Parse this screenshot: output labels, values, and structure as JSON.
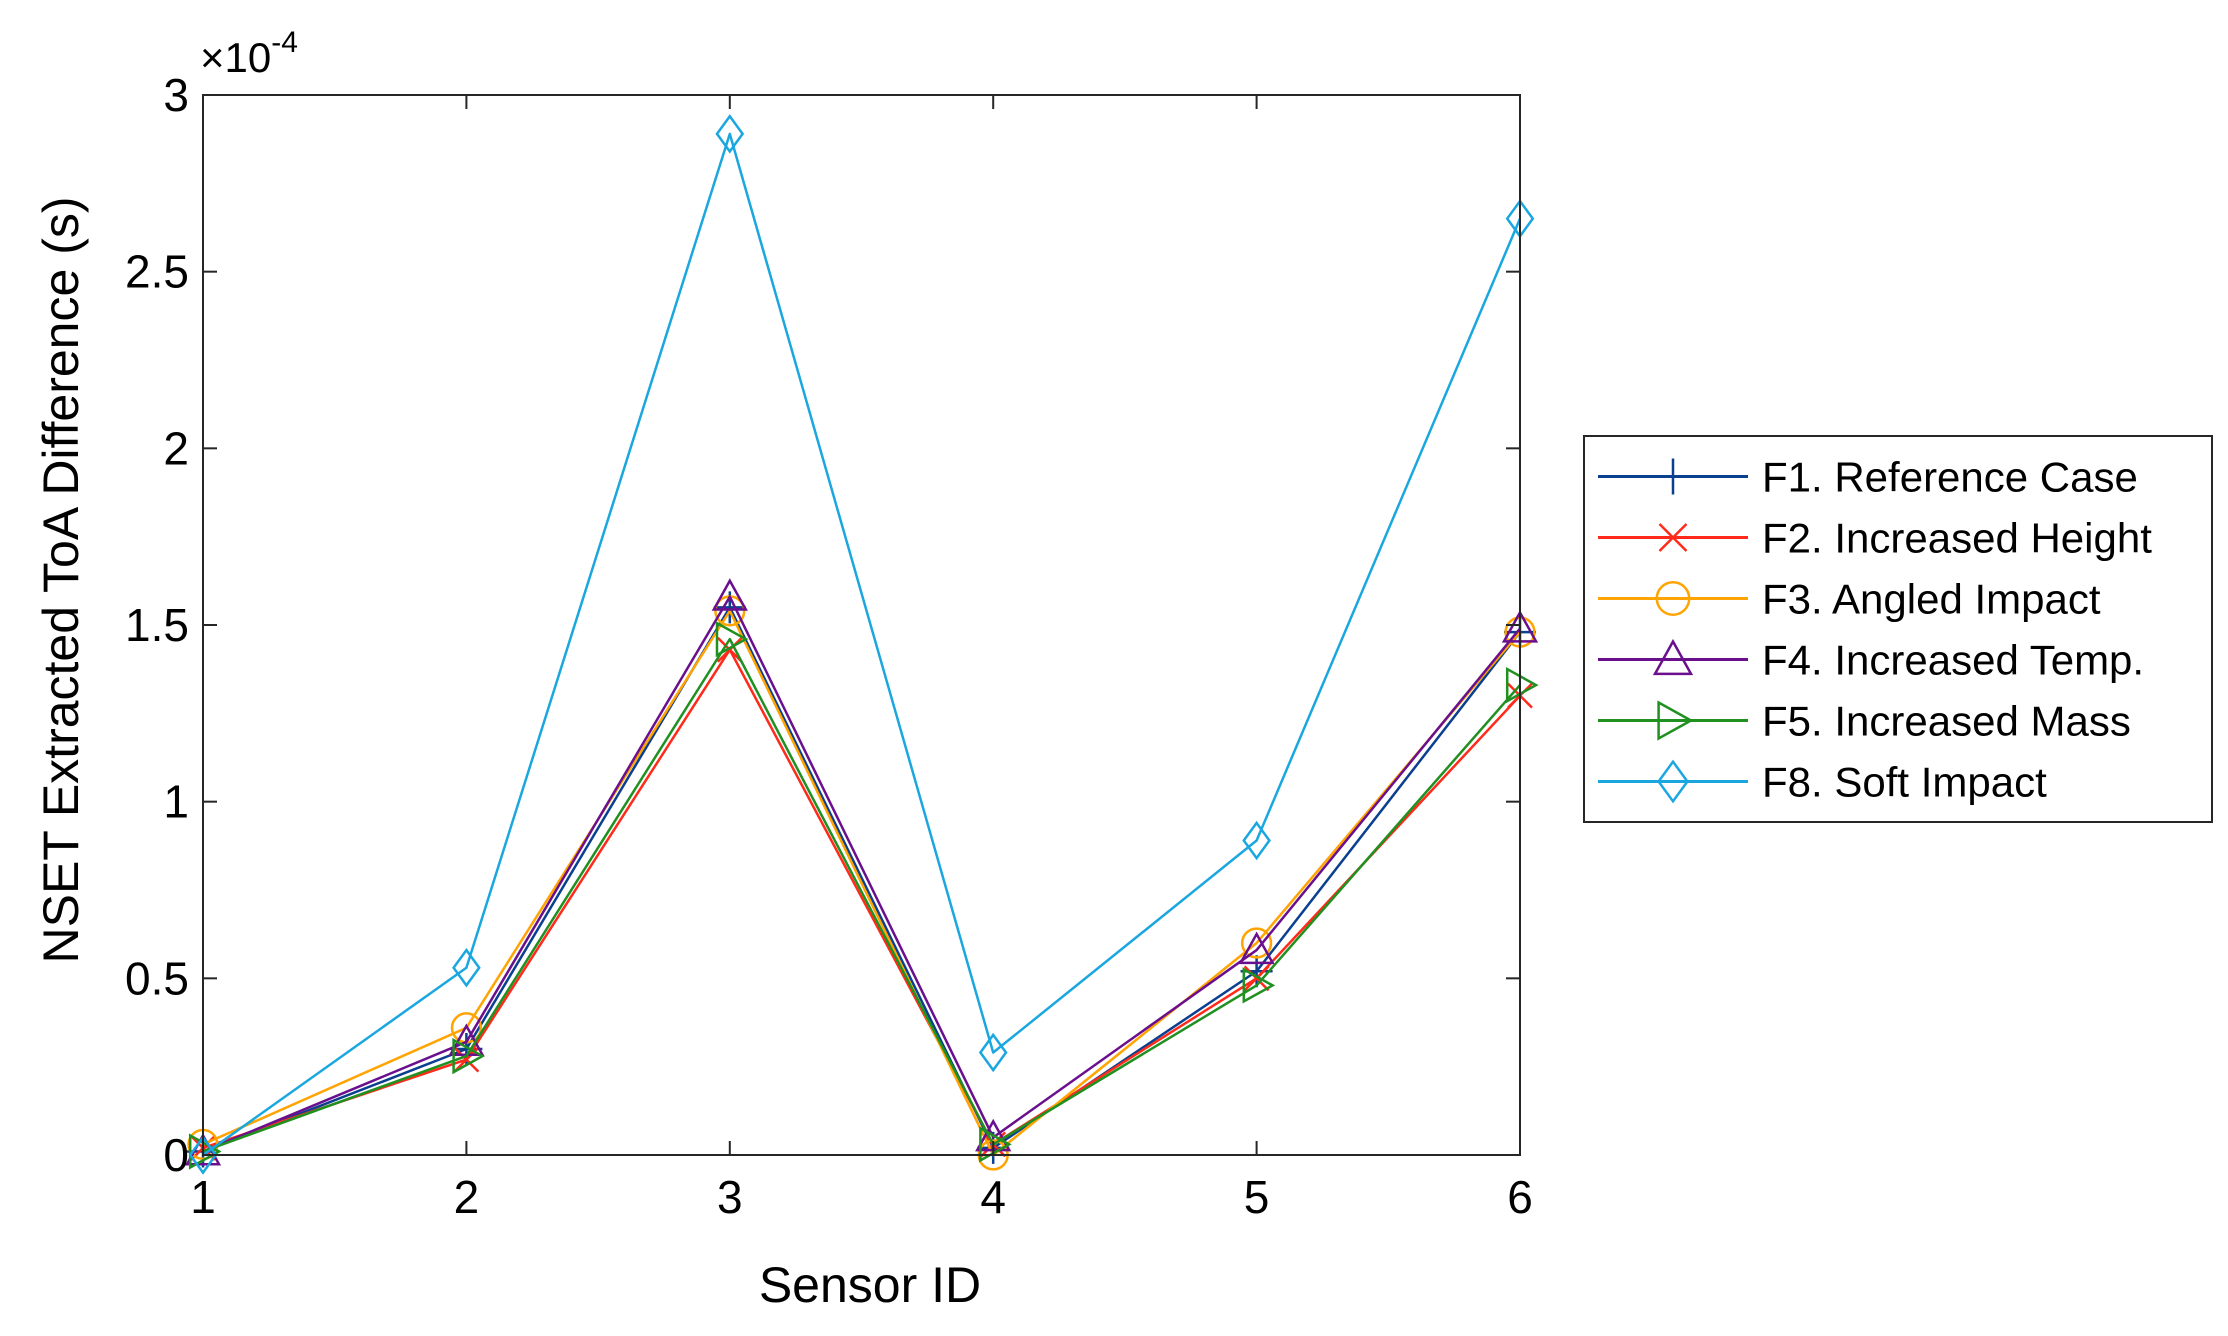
{
  "chart_data": {
    "type": "line",
    "title": "",
    "xlabel": "Sensor ID",
    "ylabel": "NSET Extracted ToA Difference (s)",
    "exponent_prefix": "×10",
    "exponent_power": "-4",
    "x": [
      1,
      2,
      3,
      4,
      5,
      6
    ],
    "xlim": [
      1,
      6
    ],
    "ylim": [
      0,
      3
    ],
    "xticks": [
      "1",
      "2",
      "3",
      "4",
      "5",
      "6"
    ],
    "yticks": [
      "0",
      "0.5",
      "1",
      "1.5",
      "2",
      "2.5",
      "3"
    ],
    "legend_position": "outside-right",
    "series": [
      {
        "name": "F1. Reference Case",
        "color": "#0b3f8f",
        "marker": "plus",
        "values": [
          0.01,
          0.3,
          1.55,
          0.02,
          0.52,
          1.48
        ]
      },
      {
        "name": "F2. Increased Height",
        "color": "#ff2a1a",
        "marker": "x",
        "values": [
          0.02,
          0.27,
          1.43,
          0.03,
          0.5,
          1.3
        ]
      },
      {
        "name": "F3. Angled Impact",
        "color": "#ffa400",
        "marker": "circle",
        "values": [
          0.03,
          0.36,
          1.54,
          0.0,
          0.6,
          1.48
        ]
      },
      {
        "name": "F4. Increased Temp.",
        "color": "#6a0f8e",
        "marker": "triangle-up",
        "values": [
          0.01,
          0.32,
          1.58,
          0.05,
          0.58,
          1.49
        ]
      },
      {
        "name": "F5. Increased Mass",
        "color": "#209020",
        "marker": "triangle-right",
        "values": [
          0.01,
          0.28,
          1.46,
          0.03,
          0.48,
          1.33
        ]
      },
      {
        "name": "F8. Soft Impact",
        "color": "#1aa7e0",
        "marker": "diamond",
        "values": [
          0.0,
          0.53,
          2.89,
          0.29,
          0.89,
          2.65
        ]
      }
    ]
  }
}
